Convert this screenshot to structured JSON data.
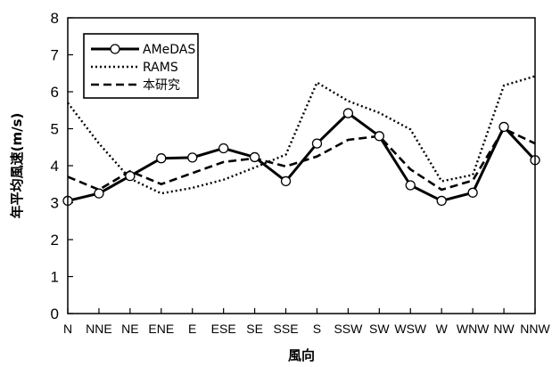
{
  "chart_data": {
    "type": "line",
    "title": "",
    "xlabel": "風向",
    "ylabel": "年平均風速(m/s)",
    "ylim": [
      0,
      8
    ],
    "yticks": [
      0,
      1,
      2,
      3,
      4,
      5,
      6,
      7,
      8
    ],
    "grid": false,
    "legend_position": "top-left",
    "categories": [
      "N",
      "NNE",
      "NE",
      "ENE",
      "E",
      "ESE",
      "SE",
      "SSE",
      "S",
      "SSW",
      "SW",
      "WSW",
      "W",
      "WNW",
      "NW",
      "NNW"
    ],
    "series": [
      {
        "name": "AMeDAS",
        "style": "solid-markers",
        "values": [
          3.05,
          3.25,
          3.72,
          4.2,
          4.22,
          4.47,
          4.23,
          3.58,
          4.6,
          5.42,
          4.8,
          3.47,
          3.05,
          3.27,
          5.05,
          4.15
        ]
      },
      {
        "name": "RAMS",
        "style": "dotted",
        "values": [
          5.7,
          4.6,
          3.65,
          3.25,
          3.4,
          3.62,
          3.95,
          4.3,
          6.25,
          5.75,
          5.43,
          4.98,
          3.58,
          3.75,
          6.17,
          6.42
        ]
      },
      {
        "name": "本研究",
        "style": "dashed",
        "values": [
          3.7,
          3.35,
          3.85,
          3.5,
          3.8,
          4.1,
          4.2,
          3.98,
          4.25,
          4.7,
          4.8,
          3.9,
          3.35,
          3.6,
          5.0,
          4.6
        ]
      }
    ]
  }
}
